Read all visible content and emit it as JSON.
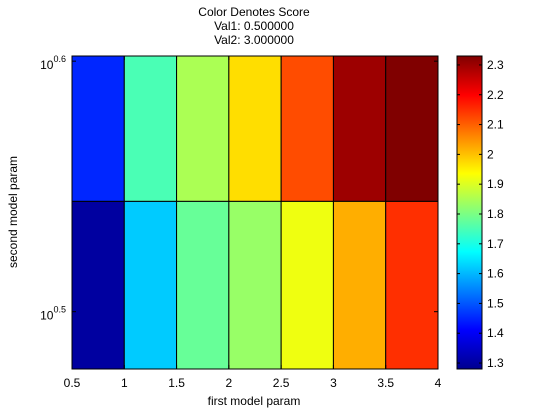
{
  "chart_data": {
    "type": "heatmap",
    "title": "Color Denotes Score",
    "title_lines": [
      "Color Denotes Score",
      "Val1: 0.500000",
      "Val2: 3.000000"
    ],
    "xlabel": "first model param",
    "ylabel": "second model param",
    "xlim": [
      0.5,
      4
    ],
    "x_ticks": [
      0.5,
      1,
      1.5,
      2,
      2.5,
      3,
      3.5,
      4
    ],
    "x_tick_labels": [
      "0.5",
      "1",
      "1.5",
      "2",
      "2.5",
      "3",
      "3.5",
      "4"
    ],
    "y_scale": "log",
    "ylim": [
      3.0,
      4.0
    ],
    "y_ticks": [
      3.1623,
      3.9811
    ],
    "y_tick_labels": [
      {
        "base": "10",
        "exp": "0.5"
      },
      {
        "base": "10",
        "exp": "0.6"
      }
    ],
    "x_edges": [
      0.5,
      1,
      1.5,
      2,
      2.5,
      3,
      3.5,
      4
    ],
    "y_edges": [
      3.0,
      3.5,
      4.0
    ],
    "rows": [
      {
        "values": [
          1.3,
          1.62,
          1.78,
          1.83,
          1.92,
          2.02,
          2.15
        ]
      },
      {
        "values": [
          1.45,
          1.75,
          1.85,
          1.97,
          2.12,
          2.3,
          2.33
        ]
      }
    ],
    "colorbar": {
      "range": [
        1.28,
        2.33
      ],
      "ticks": [
        1.3,
        1.4,
        1.5,
        1.6,
        1.7,
        1.8,
        1.9,
        2,
        2.1,
        2.2,
        2.3
      ],
      "tick_labels": [
        "1.3",
        "1.4",
        "1.5",
        "1.6",
        "1.7",
        "1.8",
        "1.9",
        "2",
        "2.1",
        "2.2",
        "2.3"
      ],
      "colormap": "jet"
    },
    "grid": false
  }
}
